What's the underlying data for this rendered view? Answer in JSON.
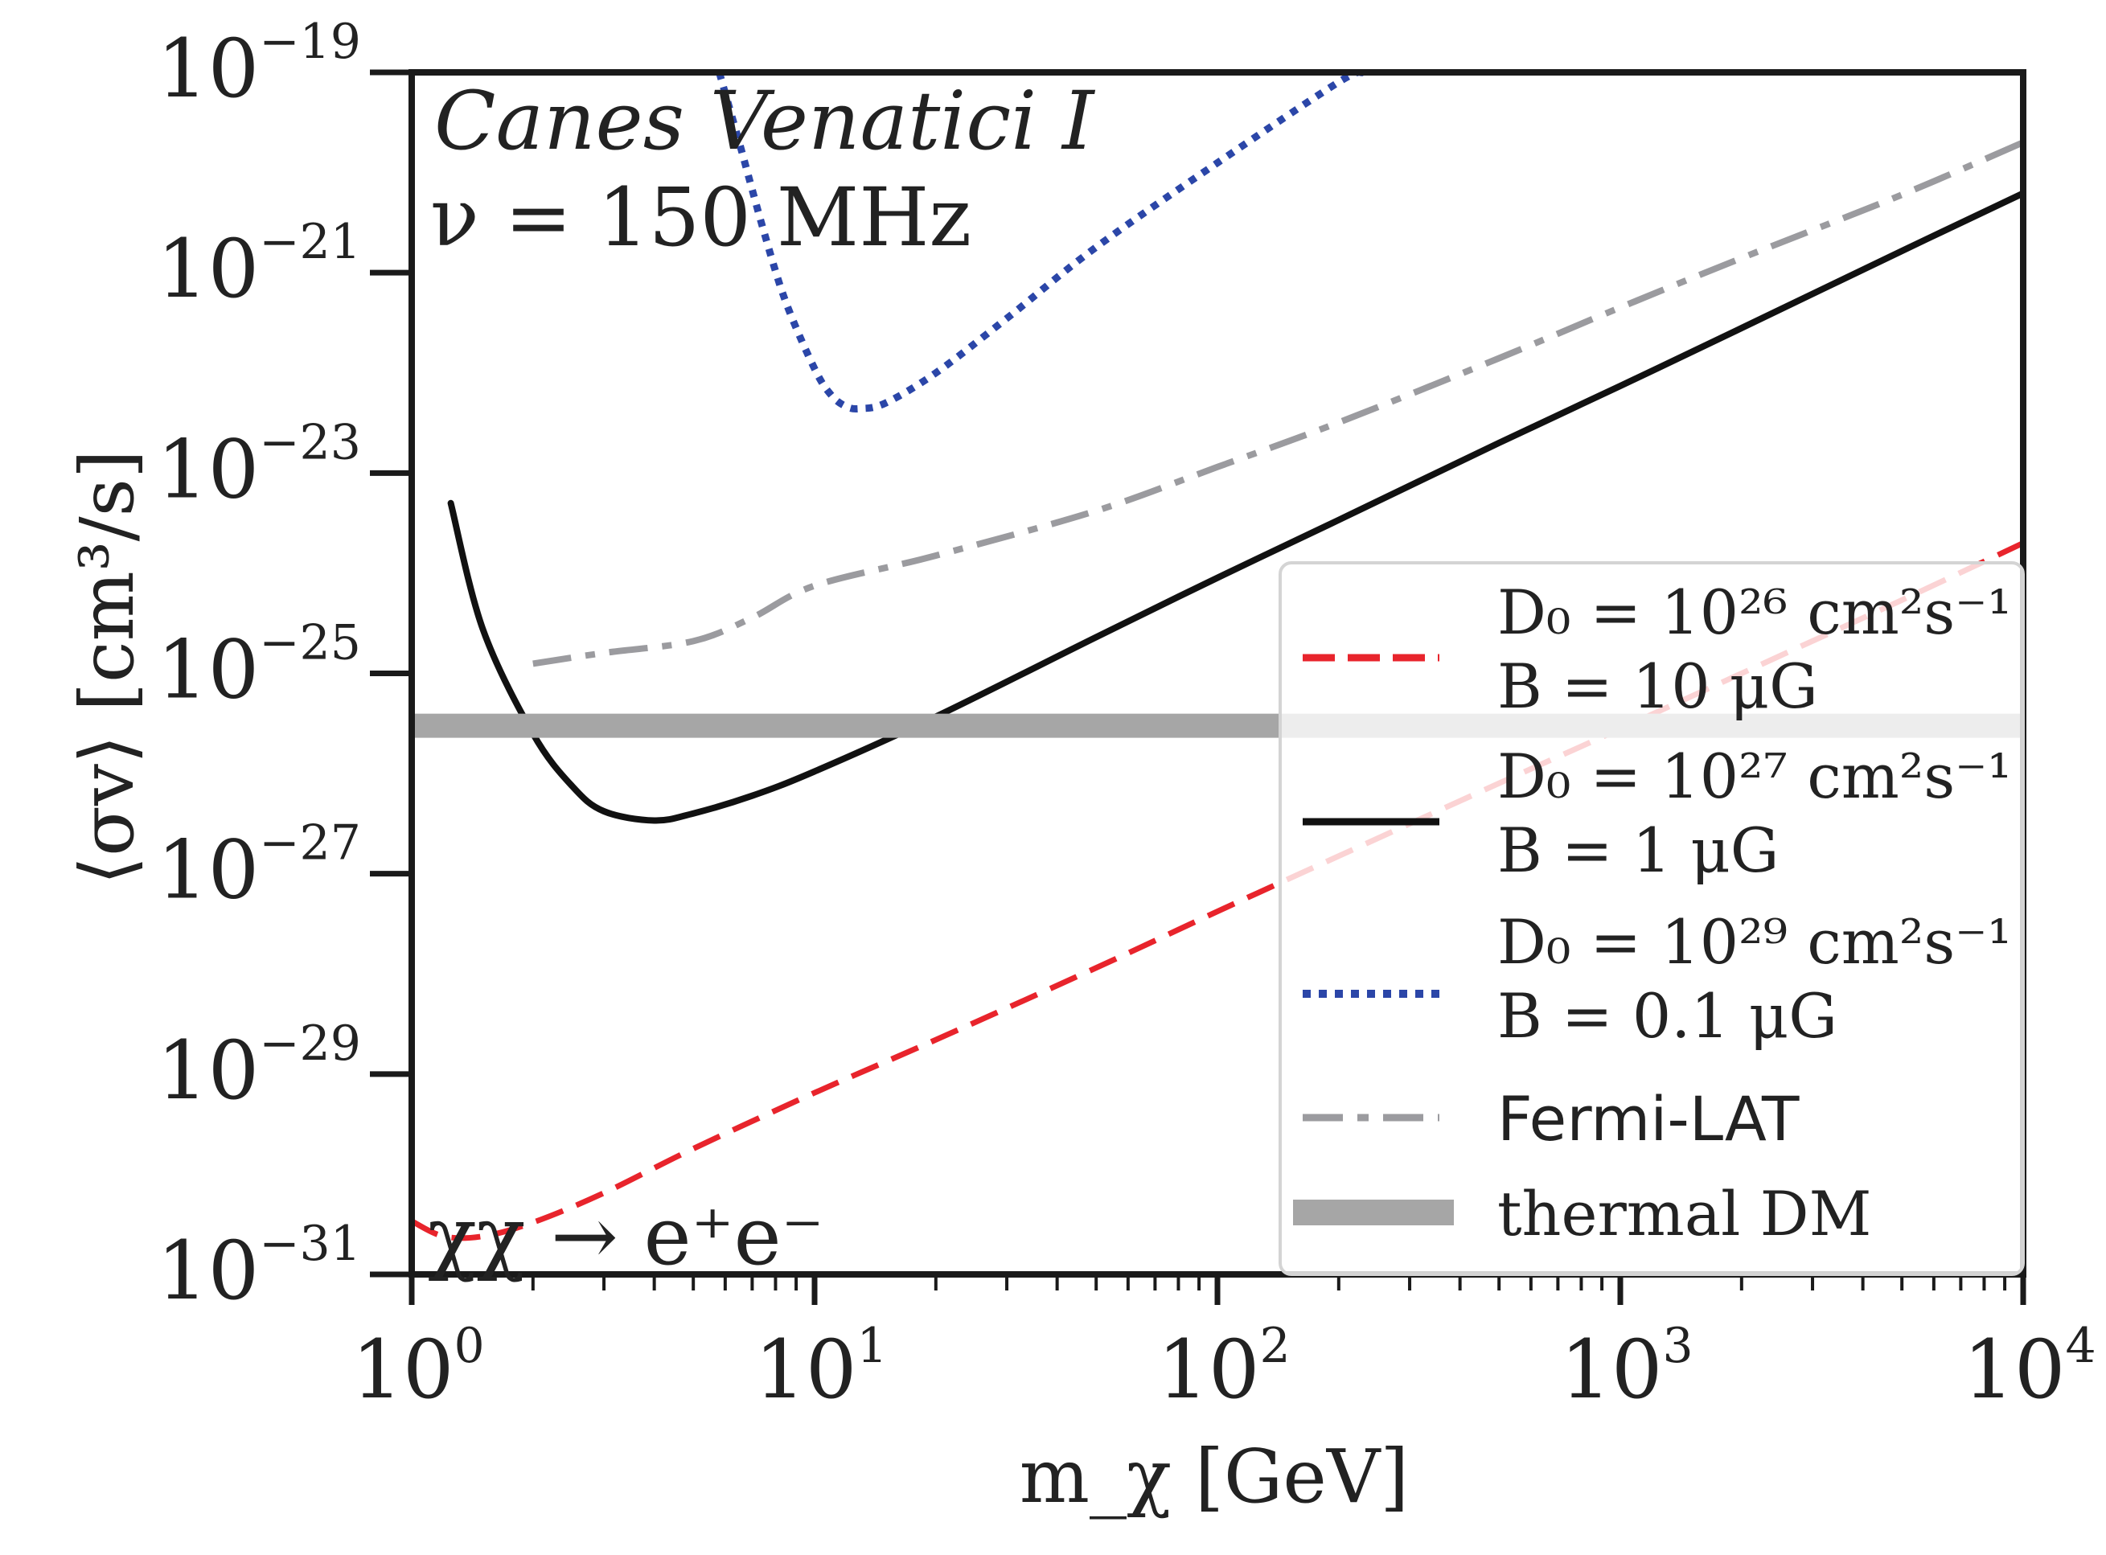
{
  "chart_data": {
    "type": "line",
    "title": "",
    "xlabel": "m_χ [GeV]",
    "ylabel": "⟨σv⟩ [cm³/s]",
    "xscale": "log",
    "yscale": "log",
    "xlim": [
      1,
      10000
    ],
    "ylim": [
      1e-31,
      1e-19
    ],
    "x_ticks": [
      {
        "value": 1,
        "base": "10",
        "exp": "0"
      },
      {
        "value": 10,
        "base": "10",
        "exp": "1"
      },
      {
        "value": 100,
        "base": "10",
        "exp": "2"
      },
      {
        "value": 1000,
        "base": "10",
        "exp": "3"
      },
      {
        "value": 10000,
        "base": "10",
        "exp": "4"
      }
    ],
    "y_ticks": [
      {
        "value": 1e-19,
        "base": "10",
        "exp": "−19"
      },
      {
        "value": 1e-21,
        "base": "10",
        "exp": "−21"
      },
      {
        "value": 1e-23,
        "base": "10",
        "exp": "−23"
      },
      {
        "value": 1e-25,
        "base": "10",
        "exp": "−25"
      },
      {
        "value": 1e-27,
        "base": "10",
        "exp": "−27"
      },
      {
        "value": 1e-29,
        "base": "10",
        "exp": "−29"
      },
      {
        "value": 1e-31,
        "base": "10",
        "exp": "−31"
      }
    ],
    "annotations": {
      "target": "Canes Venatici I",
      "frequency": "ν = 150 MHz",
      "channel": "χχ → e⁺e⁻"
    },
    "legend_position": "lower-right",
    "series": [
      {
        "name": "D0 = 1e26 cm2 s-1, B = 10 μG",
        "legend_line1": "D₀ = 10²⁶ cm²s⁻¹",
        "legend_line2": "B = 10 μG",
        "color": "#e8242c",
        "style": "dashed",
        "points": [
          [
            1.0,
            3.4e-31
          ],
          [
            1.2,
            2.4e-31
          ],
          [
            1.5,
            2.4e-31
          ],
          [
            2.0,
            3.3e-31
          ],
          [
            3.0,
            6.5e-31
          ],
          [
            5.0,
            1.8e-30
          ],
          [
            10.0,
            6.5e-30
          ],
          [
            20.0,
            2.2e-29
          ],
          [
            50.0,
            1.15e-28
          ],
          [
            100.0,
            4.2e-28
          ],
          [
            200.0,
            1.5e-27
          ],
          [
            500.0,
            8e-27
          ],
          [
            1000.0,
            2.8e-26
          ],
          [
            2000.0,
            1e-25
          ],
          [
            5000.0,
            5.4e-25
          ],
          [
            10000.0,
            2e-24
          ]
        ]
      },
      {
        "name": "D0 = 1e27 cm2 s-1, B = 1 μG",
        "legend_line1": "D₀ = 10²⁷ cm²s⁻¹",
        "legend_line2": "B = 1 μG",
        "color": "#111111",
        "style": "solid",
        "points": [
          [
            1.25,
            5e-24
          ],
          [
            1.5,
            2.8e-25
          ],
          [
            2.0,
            2.5e-26
          ],
          [
            2.5,
            7.5e-27
          ],
          [
            3.0,
            4.2e-27
          ],
          [
            4.0,
            3.4e-27
          ],
          [
            5.0,
            4e-27
          ],
          [
            7.0,
            6e-27
          ],
          [
            10.0,
            1.05e-26
          ],
          [
            20.0,
            3.7e-26
          ],
          [
            50.0,
            2.3e-25
          ],
          [
            100.0,
            9e-25
          ],
          [
            200.0,
            3.4e-24
          ],
          [
            500.0,
            2e-23
          ],
          [
            1000.0,
            7.4e-23
          ],
          [
            2000.0,
            2.8e-22
          ],
          [
            5000.0,
            1.65e-21
          ],
          [
            10000.0,
            6.2e-21
          ]
        ]
      },
      {
        "name": "D0 = 1e29 cm2 s-1, B = 0.1 μG",
        "legend_line1": "D₀ = 10²⁹ cm²s⁻¹",
        "legend_line2": "B = 0.1 μG",
        "color": "#2b46a8",
        "style": "dotted",
        "points": [
          [
            5.8,
            1e-19
          ],
          [
            6.5,
            2e-20
          ],
          [
            7.5,
            2.5e-21
          ],
          [
            8.5,
            5e-22
          ],
          [
            10.0,
            1.1e-22
          ],
          [
            11.0,
            6e-23
          ],
          [
            12.0,
            4.6e-23
          ],
          [
            13.0,
            4.4e-23
          ],
          [
            15.0,
            5e-23
          ],
          [
            20.0,
            1e-22
          ],
          [
            30.0,
            3.5e-22
          ],
          [
            50.0,
            1.8e-21
          ],
          [
            100.0,
            1.25e-20
          ],
          [
            200.0,
            8e-20
          ],
          [
            230.0,
            1e-19
          ]
        ]
      },
      {
        "name": "Fermi-LAT",
        "legend_line1": "Fermi-LAT",
        "color": "#9b9b9f",
        "style": "dashdot",
        "points": [
          [
            2.0,
            1.25e-25
          ],
          [
            3.0,
            1.6e-25
          ],
          [
            5.0,
            2.1e-25
          ],
          [
            7.0,
            3.6e-25
          ],
          [
            10.0,
            7.5e-25
          ],
          [
            20.0,
            1.5e-24
          ],
          [
            50.0,
            4.2e-24
          ],
          [
            100.0,
            1.15e-23
          ],
          [
            200.0,
            3.2e-23
          ],
          [
            500.0,
            1.4e-22
          ],
          [
            1000.0,
            4.5e-22
          ],
          [
            2000.0,
            1.4e-21
          ],
          [
            5000.0,
            6e-21
          ],
          [
            10000.0,
            2e-20
          ]
        ]
      },
      {
        "name": "thermal DM",
        "legend_line1": "thermal DM",
        "color": "#a6a6a6",
        "style": "band",
        "value": 3e-26
      }
    ]
  }
}
